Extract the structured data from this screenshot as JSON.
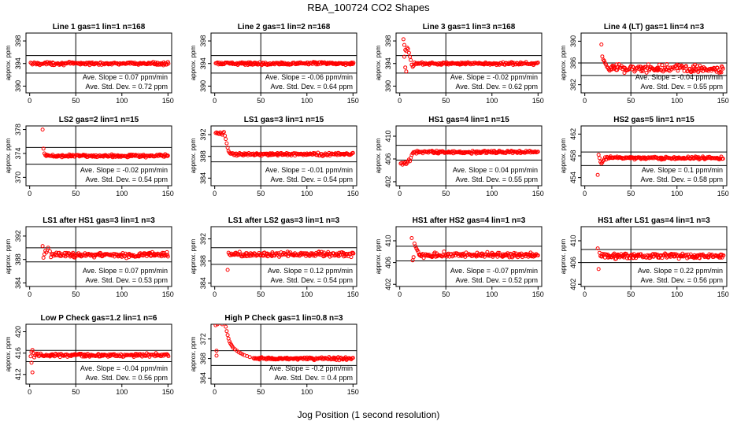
{
  "figure": {
    "title": "RBA_100724  CO2 Shapes",
    "xlabel": "Jog Position (1 second resolution)"
  },
  "chart_data": [
    {
      "type": "scatter",
      "title": "Line 1 gas=1 lin=1 n=168",
      "ylabel": "approx. ppm",
      "xlim": [
        -4,
        154
      ],
      "xticks": [
        0,
        50,
        100,
        150
      ],
      "ylim": [
        388.8,
        399.4
      ],
      "yticks": [
        390,
        394,
        398
      ],
      "hlines": [
        395.4,
        392.3
      ],
      "vline": 50,
      "x_start": 1,
      "x_end": 150,
      "base": 394.0,
      "noise": 0.12,
      "trans": null,
      "slope_label": "Ave. Slope =",
      "slope": "0.07",
      "slope_unit": "ppm/min",
      "sd_label": "Ave. Std. Dev. =",
      "sd": "0.72",
      "sd_unit": "ppm",
      "color": "#ff0000"
    },
    {
      "type": "scatter",
      "title": "Line 2 gas=1 lin=2 n=168",
      "ylabel": "approx. ppm",
      "xlim": [
        -4,
        154
      ],
      "xticks": [
        0,
        50,
        100,
        150
      ],
      "ylim": [
        388.8,
        399.4
      ],
      "yticks": [
        390,
        394,
        398
      ],
      "hlines": [
        395.4,
        392.3
      ],
      "vline": 50,
      "x_start": 1,
      "x_end": 150,
      "base": 394.0,
      "noise": 0.12,
      "trans": null,
      "slope_label": "Ave. Slope =",
      "slope": "-0.06",
      "slope_unit": "ppm/min",
      "sd_label": "Ave. Std. Dev. =",
      "sd": "0.64",
      "sd_unit": "ppm",
      "color": "#ff0000"
    },
    {
      "type": "scatter",
      "title": "Line 3 gas=1 lin=3 n=168",
      "ylabel": "approx. ppm",
      "xlim": [
        -4,
        154
      ],
      "xticks": [
        0,
        50,
        100,
        150
      ],
      "ylim": [
        388.8,
        399.4
      ],
      "yticks": [
        390,
        394,
        398
      ],
      "hlines": [
        395.4,
        392.3
      ],
      "vline": 50,
      "x_start": 4,
      "x_end": 150,
      "base": 394.0,
      "noise": 0.12,
      "trans": {
        "pts": [
          [
            4,
            398.3
          ],
          [
            5,
            397.3
          ],
          [
            6,
            396.4
          ],
          [
            5,
            395.2
          ],
          [
            7,
            396.2
          ],
          [
            8,
            396.8
          ],
          [
            9,
            396.6
          ],
          [
            10,
            395.9
          ],
          [
            11,
            395.2
          ],
          [
            12,
            394.6
          ],
          [
            6,
            393.3
          ],
          [
            7,
            392.6
          ],
          [
            13,
            393.8
          ],
          [
            14,
            393.4
          ],
          [
            15,
            393.6
          ]
        ]
      },
      "slope_label": "Ave. Slope =",
      "slope": "-0.02",
      "slope_unit": "ppm/min",
      "sd_label": "Ave. Std. Dev. =",
      "sd": "0.62",
      "sd_unit": "ppm",
      "color": "#ff0000"
    },
    {
      "type": "scatter",
      "title": "Line 4 (LT) gas=1 lin=4 n=3",
      "ylabel": "approx. ppm",
      "xlim": [
        -4,
        154
      ],
      "xticks": [
        0,
        50,
        100,
        150
      ],
      "ylim": [
        380.5,
        391.5
      ],
      "yticks": [
        382,
        386,
        390
      ],
      "hlines": [
        386.0,
        383.7
      ],
      "vline": 50,
      "x_start": 17,
      "x_end": 150,
      "base": 385.0,
      "noise": 0.4,
      "trans": {
        "pts": [
          [
            18,
            389.4
          ],
          [
            19,
            387.2
          ],
          [
            20,
            386.6
          ],
          [
            21,
            386.4
          ],
          [
            22,
            386.0
          ],
          [
            23,
            385.7
          ],
          [
            24,
            385.3
          ],
          [
            25,
            385.1
          ],
          [
            26,
            384.8
          ],
          [
            27,
            384.6
          ],
          [
            28,
            384.8
          ]
        ]
      },
      "slope_label": "Ave. Slope =",
      "slope": "-0.04",
      "slope_unit": "ppm/min",
      "sd_label": "Ave. Std. Dev. =",
      "sd": "0.55",
      "sd_unit": "ppm",
      "color": "#ff0000"
    },
    {
      "type": "scatter",
      "title": "LS2 gas=2 lin=1 n=15",
      "ylabel": "approx. ppm",
      "xlim": [
        -4,
        154
      ],
      "xticks": [
        0,
        50,
        100,
        150
      ],
      "ylim": [
        368.6,
        378.6
      ],
      "yticks": [
        370,
        374,
        378
      ],
      "hlines": [
        375.0,
        372.2
      ],
      "vline": 50,
      "x_start": 14,
      "x_end": 150,
      "base": 373.6,
      "noise": 0.12,
      "trans": {
        "pts": [
          [
            14,
            378.0
          ],
          [
            15,
            374.8
          ],
          [
            16,
            374.0
          ],
          [
            17,
            373.7
          ]
        ]
      },
      "slope_label": "Ave. Slope =",
      "slope": "-0.02",
      "slope_unit": "ppm/min",
      "sd_label": "Ave. Std. Dev. =",
      "sd": "0.54",
      "sd_unit": "ppm",
      "color": "#ff0000"
    },
    {
      "type": "scatter",
      "title": "LS1 gas=3 lin=1 n=15",
      "ylabel": "approx. ppm",
      "xlim": [
        -4,
        154
      ],
      "xticks": [
        0,
        50,
        100,
        150
      ],
      "ylim": [
        382.6,
        393.6
      ],
      "yticks": [
        384,
        388,
        392
      ],
      "hlines": [
        389.8,
        387.0
      ],
      "vline": 50,
      "x_start": 1,
      "x_end": 150,
      "base": 388.4,
      "noise": 0.12,
      "trans": {
        "pts": [
          [
            1,
            392.3
          ],
          [
            2,
            392.4
          ],
          [
            3,
            392.2
          ],
          [
            4,
            392.3
          ],
          [
            5,
            392.1
          ],
          [
            6,
            392.4
          ],
          [
            7,
            392.2
          ],
          [
            8,
            392.0
          ],
          [
            9,
            392.3
          ],
          [
            10,
            392.5
          ],
          [
            11,
            391.8
          ],
          [
            12,
            391.2
          ],
          [
            13,
            390.4
          ],
          [
            14,
            389.6
          ],
          [
            15,
            389.0
          ],
          [
            16,
            388.7
          ]
        ]
      },
      "slope_label": "Ave. Slope =",
      "slope": "-0.01",
      "slope_unit": "ppm/min",
      "sd_label": "Ave. Std. Dev. =",
      "sd": "0.54",
      "sd_unit": "ppm",
      "color": "#ff0000"
    },
    {
      "type": "scatter",
      "title": "HS1 gas=4 lin=1 n=15",
      "ylabel": "approx. ppm",
      "xlim": [
        -4,
        154
      ],
      "xticks": [
        0,
        50,
        100,
        150
      ],
      "ylim": [
        401.3,
        411.8
      ],
      "yticks": [
        402,
        406,
        410
      ],
      "hlines": [
        408.4,
        405.8
      ],
      "vline": 50,
      "x_start": 1,
      "x_end": 150,
      "base": 407.2,
      "noise": 0.12,
      "trans": {
        "pts": [
          [
            1,
            405.2
          ],
          [
            2,
            405.3
          ],
          [
            3,
            405.0
          ],
          [
            4,
            405.3
          ],
          [
            5,
            405.2
          ],
          [
            6,
            405.4
          ],
          [
            7,
            405.1
          ],
          [
            8,
            405.3
          ],
          [
            9,
            405.6
          ],
          [
            10,
            405.9
          ],
          [
            11,
            405.6
          ],
          [
            12,
            406.2
          ],
          [
            13,
            406.7
          ],
          [
            14,
            407.0
          ]
        ]
      },
      "slope_label": "Ave. Slope =",
      "slope": "0.04",
      "slope_unit": "ppm/min",
      "sd_label": "Ave. Std. Dev. =",
      "sd": "0.55",
      "sd_unit": "ppm",
      "color": "#ff0000"
    },
    {
      "type": "scatter",
      "title": "HS2 gas=5 lin=1 n=15",
      "ylabel": "approx. ppm",
      "xlim": [
        -4,
        154
      ],
      "xticks": [
        0,
        50,
        100,
        150
      ],
      "ylim": [
        452.5,
        463.5
      ],
      "yticks": [
        454,
        458,
        462
      ],
      "hlines": [
        458.7,
        456.2
      ],
      "vline": 50,
      "x_start": 14,
      "x_end": 150,
      "base": 457.6,
      "noise": 0.12,
      "trans": {
        "pts": [
          [
            14,
            454.5
          ],
          [
            15,
            458.2
          ],
          [
            16,
            457.6
          ],
          [
            17,
            456.9
          ],
          [
            18,
            456.6
          ],
          [
            19,
            456.8
          ],
          [
            20,
            457.1
          ],
          [
            21,
            457.3
          ]
        ]
      },
      "slope_label": "Ave. Slope =",
      "slope": "0.1",
      "slope_unit": "ppm/min",
      "sd_label": "Ave. Std. Dev. =",
      "sd": "0.58",
      "sd_unit": "ppm",
      "color": "#ff0000"
    },
    {
      "type": "scatter",
      "title": "LS1 after HS1 gas=3 lin=1 n=3",
      "ylabel": "approx. ppm",
      "xlim": [
        -4,
        154
      ],
      "xticks": [
        0,
        50,
        100,
        150
      ],
      "ylim": [
        383.4,
        393.6
      ],
      "yticks": [
        384,
        388,
        392
      ],
      "hlines": [
        390.0,
        387.6
      ],
      "vline": 50,
      "x_start": 14,
      "x_end": 150,
      "base": 388.8,
      "noise": 0.22,
      "trans": {
        "pts": [
          [
            14,
            390.3
          ],
          [
            15,
            388.3
          ],
          [
            16,
            388.9
          ],
          [
            17,
            389.5
          ],
          [
            18,
            389.2
          ],
          [
            20,
            390.0
          ],
          [
            22,
            389.4
          ]
        ]
      },
      "slope_label": "Ave. Slope =",
      "slope": "0.07",
      "slope_unit": "ppm/min",
      "sd_label": "Ave. Std. Dev. =",
      "sd": "0.53",
      "sd_unit": "ppm",
      "color": "#ff0000"
    },
    {
      "type": "scatter",
      "title": "LS1 after LS2 gas=3 lin=1 n=3",
      "ylabel": "approx. ppm",
      "xlim": [
        -4,
        154
      ],
      "xticks": [
        0,
        50,
        100,
        150
      ],
      "ylim": [
        383.4,
        394.2
      ],
      "yticks": [
        384,
        388,
        392
      ],
      "hlines": [
        390.4,
        387.4
      ],
      "vline": 50,
      "x_start": 14,
      "x_end": 150,
      "base": 389.2,
      "noise": 0.22,
      "trans": {
        "pts": [
          [
            14,
            386.4
          ],
          [
            15,
            389.5
          ],
          [
            16,
            389.2
          ]
        ]
      },
      "slope_label": "Ave. Slope =",
      "slope": "0.12",
      "slope_unit": "ppm/min",
      "sd_label": "Ave. Std. Dev. =",
      "sd": "0.54",
      "sd_unit": "ppm",
      "color": "#ff0000"
    },
    {
      "type": "scatter",
      "title": "HS1 after HS2 gas=4 lin=1 n=3",
      "ylabel": "approx. ppm",
      "xlim": [
        -4,
        154
      ],
      "xticks": [
        0,
        50,
        100,
        150
      ],
      "ylim": [
        401.6,
        412.6
      ],
      "yticks": [
        402,
        406,
        410
      ],
      "hlines": [
        409.0,
        406.3
      ],
      "vline": 50,
      "x_start": 13,
      "x_end": 150,
      "base": 407.4,
      "noise": 0.22,
      "trans": {
        "pts": [
          [
            13,
            410.5
          ],
          [
            14,
            406.4
          ],
          [
            15,
            407.0
          ],
          [
            16,
            409.5
          ],
          [
            17,
            409.0
          ],
          [
            18,
            408.6
          ],
          [
            19,
            408.3
          ],
          [
            20,
            408.0
          ]
        ]
      },
      "slope_label": "Ave. Slope =",
      "slope": "-0.07",
      "slope_unit": "ppm/min",
      "sd_label": "Ave. Std. Dev. =",
      "sd": "0.52",
      "sd_unit": "ppm",
      "color": "#ff0000"
    },
    {
      "type": "scatter",
      "title": "HS1 after LS1 gas=4 lin=1 n=3",
      "ylabel": "approx. ppm",
      "xlim": [
        -4,
        154
      ],
      "xticks": [
        0,
        50,
        100,
        150
      ],
      "ylim": [
        401.6,
        412.6
      ],
      "yticks": [
        402,
        406,
        410
      ],
      "hlines": [
        408.4,
        406.0
      ],
      "vline": 50,
      "x_start": 14,
      "x_end": 150,
      "base": 407.2,
      "noise": 0.22,
      "trans": {
        "pts": [
          [
            14,
            408.6
          ],
          [
            15,
            404.8
          ],
          [
            16,
            407.8
          ],
          [
            17,
            407.2
          ]
        ]
      },
      "slope_label": "Ave. Slope =",
      "slope": "0.22",
      "slope_unit": "ppm/min",
      "sd_label": "Ave. Std. Dev. =",
      "sd": "0.56",
      "sd_unit": "ppm",
      "color": "#ff0000"
    },
    {
      "type": "scatter",
      "title": "Low P Check gas=1.2 lin=1 n=6",
      "ylabel": "approx. ppm",
      "xlim": [
        -4,
        154
      ],
      "xticks": [
        0,
        50,
        100,
        150
      ],
      "ylim": [
        410.2,
        421.4
      ],
      "yticks": [
        412,
        416,
        420
      ],
      "hlines": [
        416.5,
        414.4
      ],
      "vline": 50,
      "x_start": 1,
      "x_end": 150,
      "base": 415.6,
      "noise": 0.14,
      "trans": {
        "pts": [
          [
            1,
            415.4
          ],
          [
            2,
            414.2
          ],
          [
            3,
            412.4
          ],
          [
            2,
            416.2
          ],
          [
            3,
            416.6
          ],
          [
            4,
            416.0
          ],
          [
            5,
            415.2
          ],
          [
            6,
            415.6
          ],
          [
            7,
            415.9
          ]
        ]
      },
      "slope_label": "Ave. Slope =",
      "slope": "-0.04",
      "slope_unit": "ppm/min",
      "sd_label": "Ave. Std. Dev. =",
      "sd": "0.56",
      "sd_unit": "ppm",
      "color": "#ff0000"
    },
    {
      "type": "scatter",
      "title": "High P Check gas=1 lin=0.8 n=3",
      "ylabel": "approx. ppm",
      "xlim": [
        -4,
        154
      ],
      "xticks": [
        0,
        50,
        100,
        150
      ],
      "ylim": [
        362.8,
        375.0
      ],
      "yticks": [
        364,
        368,
        372
      ],
      "hlines": [
        369.6,
        366.6
      ],
      "vline": 50,
      "x_start": 1,
      "x_end": 150,
      "base": 368.0,
      "noise": 0.14,
      "trans": {
        "pts": [
          [
            1,
            374.8
          ],
          [
            2,
            369.6
          ],
          [
            2,
            368.6
          ],
          [
            3,
            375.0
          ],
          [
            8,
            375.0
          ],
          [
            12,
            374.5
          ],
          [
            13,
            373.6
          ],
          [
            14,
            372.8
          ],
          [
            15,
            372.1
          ],
          [
            16,
            371.5
          ],
          [
            17,
            371.1
          ],
          [
            18,
            370.8
          ],
          [
            19,
            370.5
          ],
          [
            20,
            370.2
          ],
          [
            22,
            369.9
          ],
          [
            24,
            369.6
          ],
          [
            26,
            369.3
          ],
          [
            28,
            369.1
          ],
          [
            30,
            368.9
          ],
          [
            32,
            368.7
          ],
          [
            35,
            368.5
          ],
          [
            38,
            368.3
          ],
          [
            42,
            368.1
          ]
        ]
      },
      "slope_label": "Ave. Slope =",
      "slope": "-0.2",
      "slope_unit": "ppm/min",
      "sd_label": "Ave. Std. Dev. =",
      "sd": "0.4",
      "sd_unit": "ppm",
      "color": "#ff0000"
    }
  ]
}
